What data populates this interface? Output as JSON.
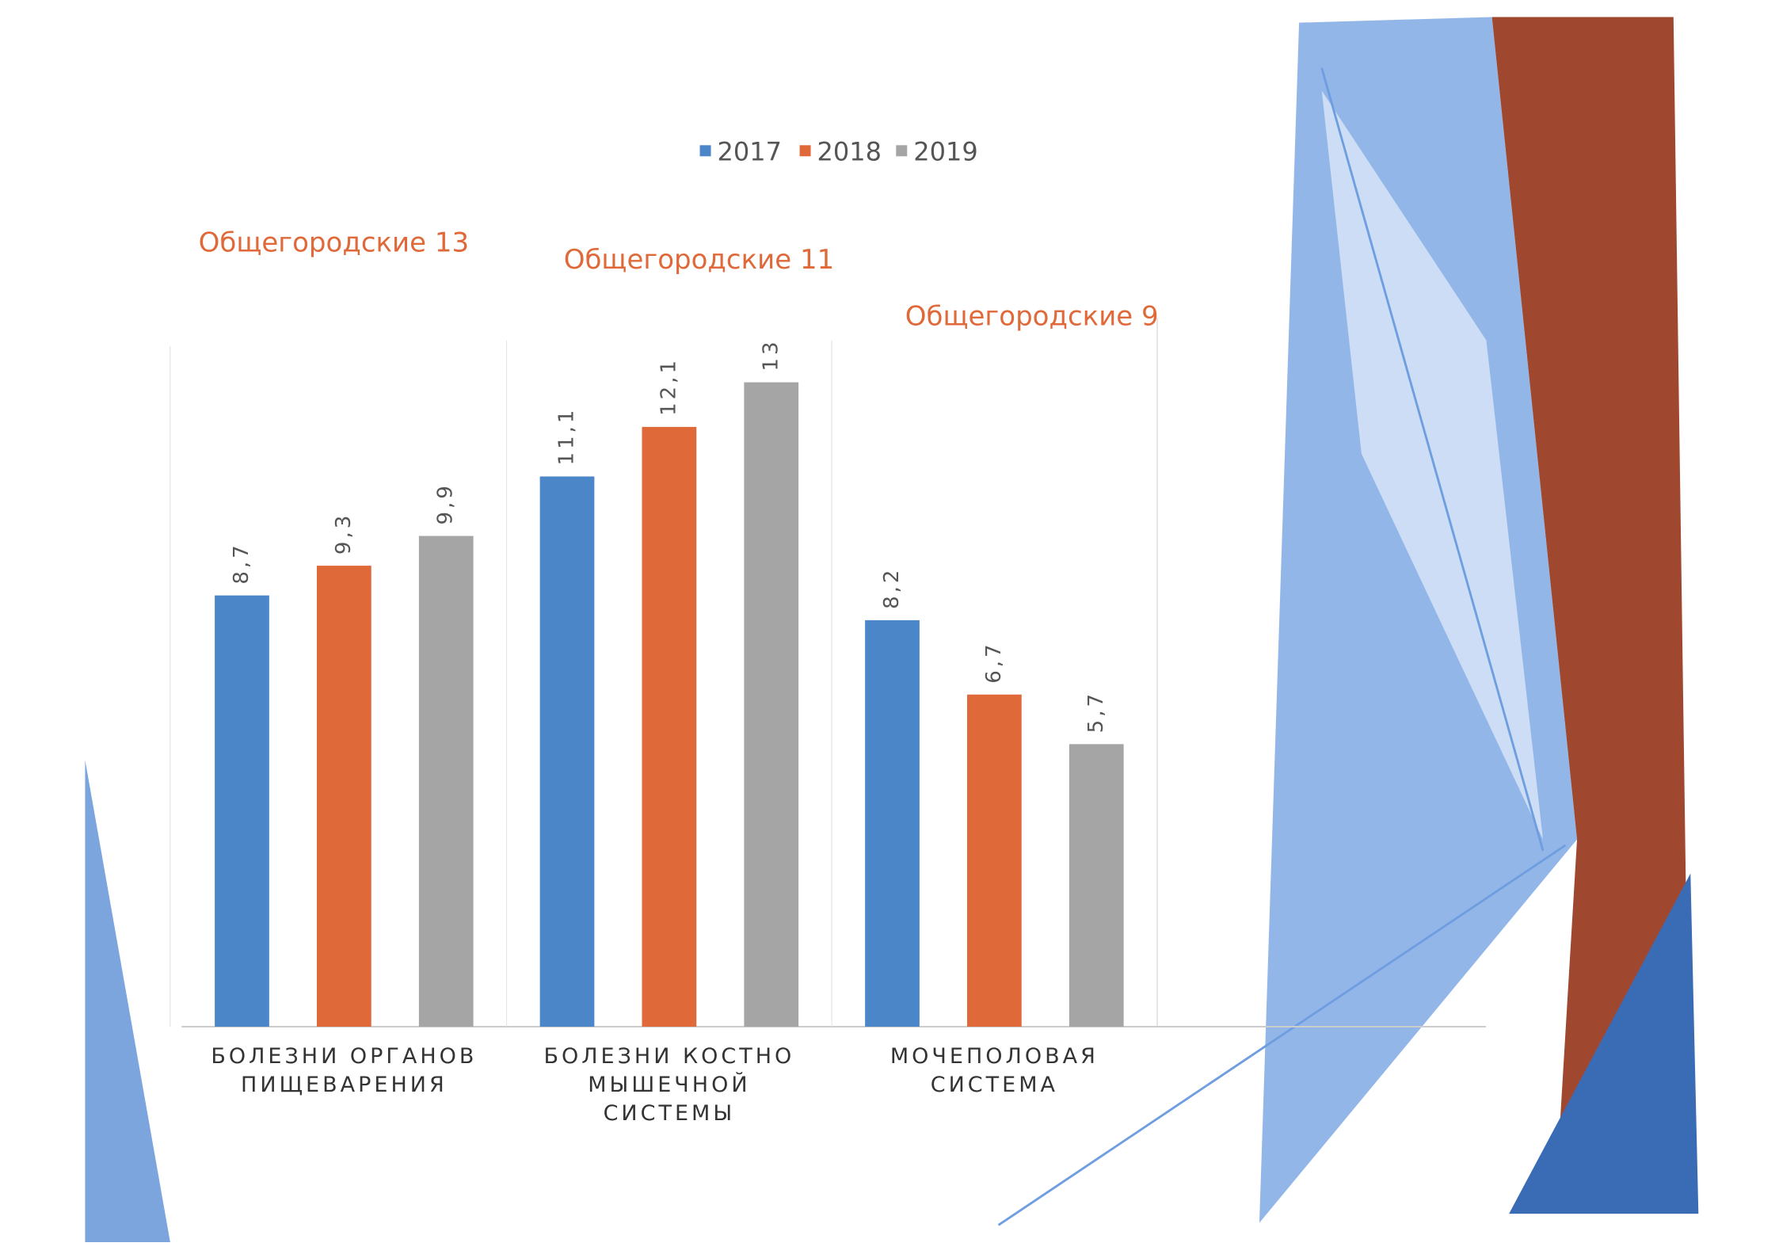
{
  "chart_data": {
    "type": "bar",
    "categories": [
      "БОЛЕЗНИ ОРГАНОВ ПИЩЕВАРЕНИЯ",
      "БОЛЕЗНИ КОСТНО МЫШЕЧНОЙ СИСТЕМЫ",
      "МОЧЕПОЛОВАЯ СИСТЕМА"
    ],
    "series": [
      {
        "name": "2017",
        "color": "#4a86c8",
        "values": [
          8.7,
          11.1,
          8.2
        ],
        "value_labels": [
          "8,7",
          "11,1",
          "8,2"
        ]
      },
      {
        "name": "2018",
        "color": "#e0693a",
        "values": [
          9.3,
          12.1,
          6.7
        ],
        "value_labels": [
          "9,3",
          "12,1",
          "6,7"
        ]
      },
      {
        "name": "2019",
        "color": "#a5a5a5",
        "values": [
          9.9,
          13,
          5.7
        ],
        "value_labels": [
          "9,9",
          "13",
          "5,7"
        ]
      }
    ],
    "annotations": [
      "Общегородские 13",
      "Общегородские 11",
      "Общегородские 9"
    ],
    "legend": "top"
  }
}
